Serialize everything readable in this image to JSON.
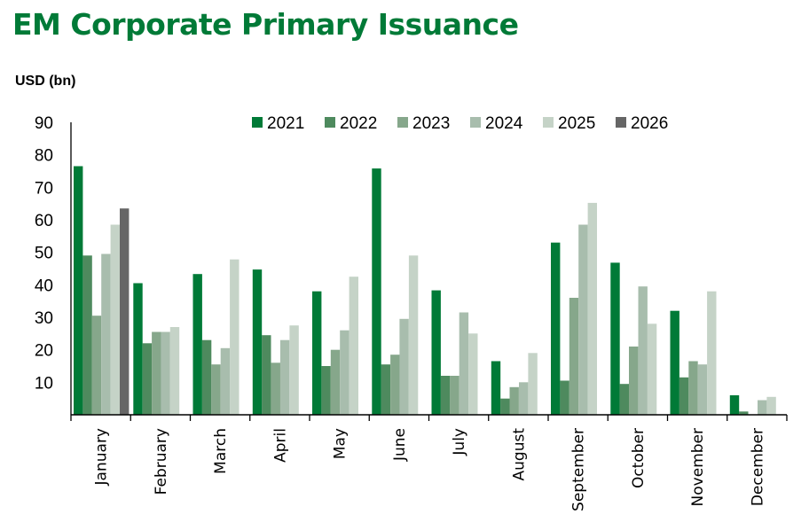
{
  "chart_data": {
    "type": "bar",
    "title": "EM Corporate Primary Issuance",
    "ylabel": "USD (bn)",
    "xlabel": "",
    "ylim": [
      0,
      90
    ],
    "yticks": [
      10,
      20,
      30,
      40,
      50,
      60,
      70,
      80,
      90
    ],
    "grid": false,
    "legend_position": "top-right",
    "categories": [
      "January",
      "February",
      "March",
      "April",
      "May",
      "June",
      "July",
      "August",
      "September",
      "October",
      "November",
      "December"
    ],
    "series": [
      {
        "name": "2021",
        "color": "#007a37",
        "values": [
          76.5,
          40.5,
          43.3,
          44.7,
          38.0,
          75.8,
          38.3,
          16.5,
          53.0,
          46.8,
          32.0,
          6.0
        ]
      },
      {
        "name": "2022",
        "color": "#4e8a5e",
        "values": [
          49.0,
          22.0,
          23.0,
          24.5,
          15.0,
          15.5,
          12.0,
          5.0,
          10.5,
          9.5,
          11.5,
          1.0
        ]
      },
      {
        "name": "2023",
        "color": "#86a78b",
        "values": [
          30.5,
          25.5,
          15.5,
          16.0,
          20.0,
          18.5,
          12.0,
          8.5,
          36.0,
          21.0,
          16.5,
          0
        ]
      },
      {
        "name": "2024",
        "color": "#a8bdad",
        "values": [
          49.5,
          25.5,
          20.5,
          23.0,
          26.0,
          29.5,
          31.5,
          10.0,
          58.5,
          39.5,
          15.5,
          4.5
        ]
      },
      {
        "name": "2025",
        "color": "#c5d3c7",
        "values": [
          58.5,
          27.0,
          47.8,
          27.5,
          42.5,
          49.0,
          25.0,
          19.0,
          65.2,
          28.0,
          38.0,
          5.5
        ]
      },
      {
        "name": "2026",
        "color": "#666666",
        "values": [
          63.5,
          null,
          null,
          null,
          null,
          null,
          null,
          null,
          null,
          null,
          null,
          null
        ]
      }
    ]
  }
}
